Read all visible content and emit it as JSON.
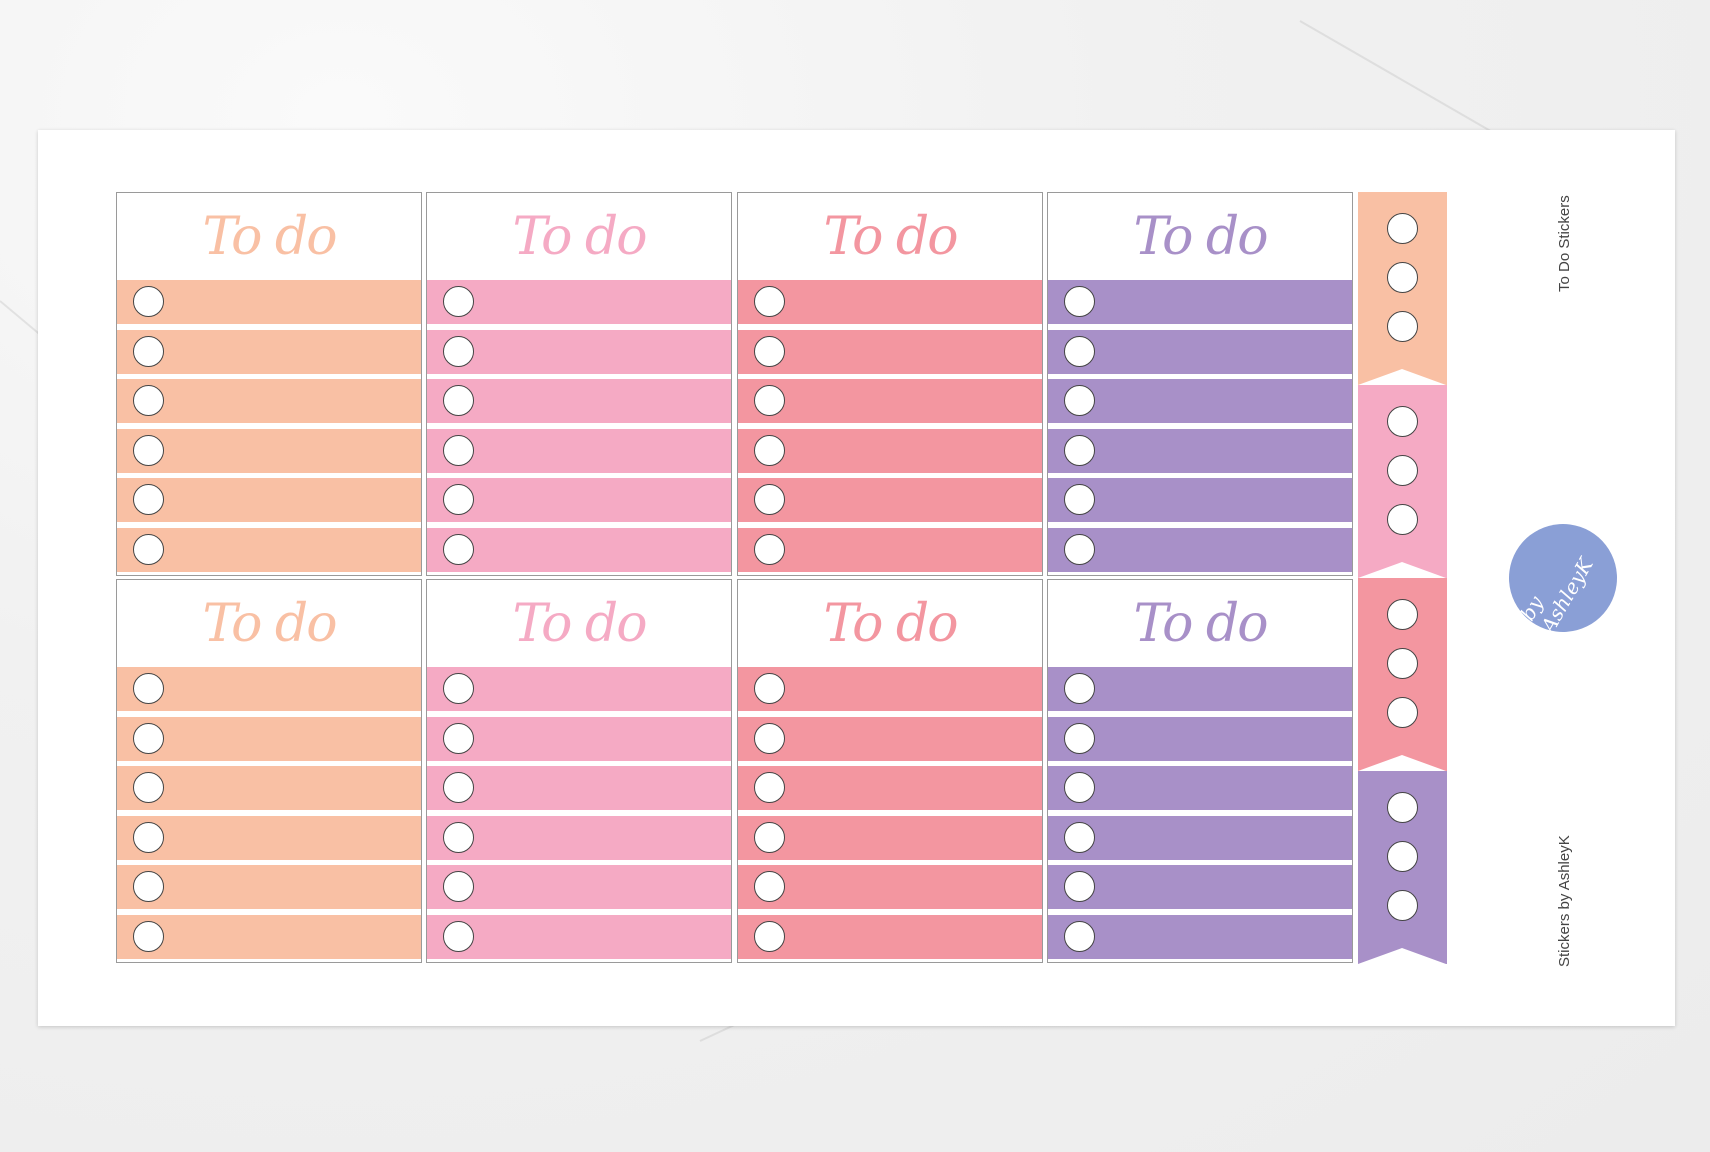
{
  "sheet": {
    "title": "To Do Stickers",
    "credit": "Stickers by AshleyK",
    "logo_text": "by AshleyK"
  },
  "card_heading": "To do",
  "colors": {
    "peach": "#f9c0a4",
    "pink": "#f5aac4",
    "coral": "#f396a0",
    "lavender": "#a890c8"
  },
  "card_rows": [
    [
      "peach",
      "pink",
      "coral",
      "lavender"
    ],
    [
      "peach",
      "pink",
      "coral",
      "lavender"
    ]
  ],
  "checkbox_rows_per_card": 6,
  "flags": [
    "peach",
    "pink",
    "coral",
    "lavender"
  ],
  "checkboxes_per_flag": 3
}
